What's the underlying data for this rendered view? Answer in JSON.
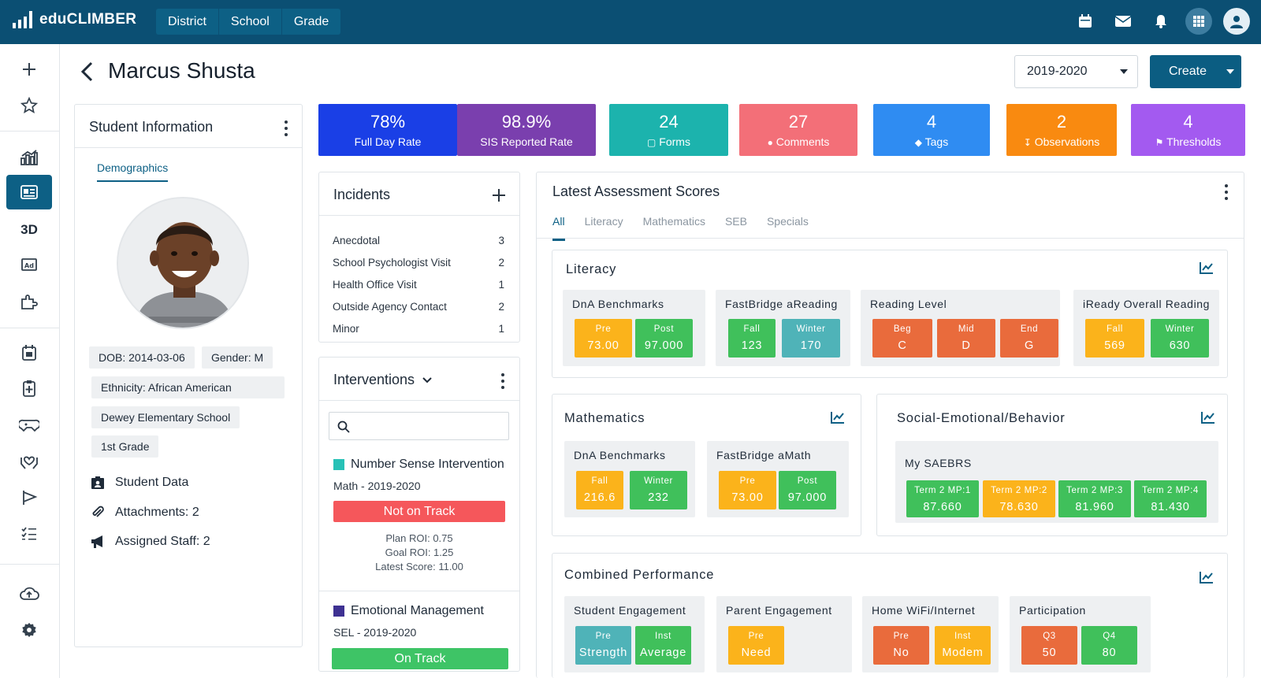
{
  "app": {
    "name": "eduCLIMBER"
  },
  "nav": {
    "items": [
      "District",
      "School",
      "Grade"
    ]
  },
  "rail": {
    "text_item": "3D"
  },
  "header": {
    "title": "Marcus Shusta",
    "year": "2019-2020",
    "create_label": "Create"
  },
  "student_info": {
    "title": "Student Information",
    "tab": "Demographics",
    "chips": {
      "dob": "DOB: 2014-03-06",
      "gender": "Gender: M",
      "ethnicity": "Ethnicity: African American",
      "school": "Dewey Elementary School",
      "grade": "1st Grade"
    },
    "links": {
      "student_data": "Student Data",
      "attachments": "Attachments: 2",
      "assigned_staff": "Assigned Staff: 2"
    }
  },
  "tiles": [
    {
      "value": "78%",
      "label": "Full Day Rate",
      "color": "#1a3fe6"
    },
    {
      "value": "98.9%",
      "label": "SIS Reported Rate",
      "color": "#7a3fae"
    },
    {
      "value": "24",
      "label": "Forms",
      "icon": "forms-icon",
      "color": "#1cb3ad"
    },
    {
      "value": "27",
      "label": "Comments",
      "icon": "comments-icon",
      "color": "#f36f78"
    },
    {
      "value": "4",
      "label": "Tags",
      "icon": "tags-icon",
      "color": "#2f8cf2"
    },
    {
      "value": "2",
      "label": "Observations",
      "icon": "observations-icon",
      "color": "#f98a10"
    },
    {
      "value": "4",
      "label": "Thresholds",
      "icon": "thresholds-icon",
      "color": "#a35af0"
    }
  ],
  "incidents": {
    "title": "Incidents",
    "rows": [
      {
        "label": "Anecdotal",
        "count": "3"
      },
      {
        "label": "School Psychologist Visit",
        "count": "2"
      },
      {
        "label": "Health Office Visit",
        "count": "1"
      },
      {
        "label": "Outside Agency Contact",
        "count": "2"
      },
      {
        "label": "Minor",
        "count": "1"
      }
    ]
  },
  "interventions": {
    "title": "Interventions",
    "search_placeholder": "",
    "items": [
      {
        "name": "Number Sense Intervention",
        "sub": "Math -  2019-2020",
        "status": "Not on Track",
        "plan_roi": "Plan ROI: 0.75",
        "goal_roi": "Goal ROI: 1.25",
        "latest": "Latest Score: 11.00",
        "color": "#27c1b6",
        "status_color": "#f5575b"
      },
      {
        "name": "Emotional Management",
        "sub": "SEL - 2019-2020",
        "status": "On Track",
        "color": "#3e3192",
        "status_color": "#3ec466"
      }
    ]
  },
  "assessment": {
    "title": "Latest Assessment Scores",
    "tabs": [
      "All",
      "Literacy",
      "Mathematics",
      "SEB",
      "Specials"
    ],
    "literacy": {
      "title": "Literacy",
      "groups": [
        {
          "label": "DnA Benchmarks",
          "scores": [
            {
              "label": "Pre",
              "value": "73.00",
              "color": "#fbb31b"
            },
            {
              "label": "Post",
              "value": "97.000",
              "color": "#40c05b"
            }
          ]
        },
        {
          "label": "FastBridge aReading",
          "scores": [
            {
              "label": "Fall",
              "value": "123",
              "color": "#40c05b"
            },
            {
              "label": "Winter",
              "value": "170",
              "color": "#4fb3b8"
            }
          ]
        },
        {
          "label": "Reading Level",
          "scores": [
            {
              "label": "Beg",
              "value": "C",
              "color": "#e96b3c"
            },
            {
              "label": "Mid",
              "value": "D",
              "color": "#e96b3c"
            },
            {
              "label": "End",
              "value": "G",
              "color": "#e96b3c"
            }
          ]
        },
        {
          "label": "iReady Overall Reading",
          "scores": [
            {
              "label": "Fall",
              "value": "569",
              "color": "#fbb31b"
            },
            {
              "label": "Winter",
              "value": "630",
              "color": "#40c05b"
            }
          ]
        }
      ]
    },
    "math": {
      "title": "Mathematics",
      "groups": [
        {
          "label": "DnA Benchmarks",
          "scores": [
            {
              "label": "Fall",
              "value": "216.6",
              "color": "#fbb31b"
            },
            {
              "label": "Winter",
              "value": "232",
              "color": "#40c05b"
            }
          ]
        },
        {
          "label": "FastBridge aMath",
          "scores": [
            {
              "label": "Pre",
              "value": "73.00",
              "color": "#fbb31b"
            },
            {
              "label": "Post",
              "value": "97.000",
              "color": "#40c05b"
            }
          ]
        }
      ]
    },
    "seb": {
      "title": "Social-Emotional/Behavior",
      "groups": [
        {
          "label": "My SAEBRS",
          "scores": [
            {
              "label": "Term 2 MP:1",
              "value": "87.660",
              "color": "#40c05b"
            },
            {
              "label": "Term 2 MP:2",
              "value": "78.630",
              "color": "#fbb31b"
            },
            {
              "label": "Term 2 MP:3",
              "value": "81.960",
              "color": "#40c05b"
            },
            {
              "label": "Term 2 MP:4",
              "value": "81.430",
              "color": "#40c05b"
            }
          ]
        }
      ]
    },
    "combined": {
      "title": "Combined Performance",
      "groups": [
        {
          "label": "Student Engagement",
          "scores": [
            {
              "label": "Pre",
              "value": "Strength",
              "color": "#4fb3b8"
            },
            {
              "label": "Inst",
              "value": "Average",
              "color": "#40c05b"
            }
          ]
        },
        {
          "label": "Parent Engagement",
          "scores": [
            {
              "label": "Pre",
              "value": "Need",
              "color": "#fbb31b"
            }
          ]
        },
        {
          "label": "Home WiFi/Internet",
          "scores": [
            {
              "label": "Pre",
              "value": "No",
              "color": "#e96b3c"
            },
            {
              "label": "Inst",
              "value": "Modem",
              "color": "#fbb31b"
            }
          ]
        },
        {
          "label": "Participation",
          "scores": [
            {
              "label": "Q3",
              "value": "50",
              "color": "#e96b3c"
            },
            {
              "label": "Q4",
              "value": "80",
              "color": "#40c05b"
            }
          ]
        }
      ]
    }
  }
}
